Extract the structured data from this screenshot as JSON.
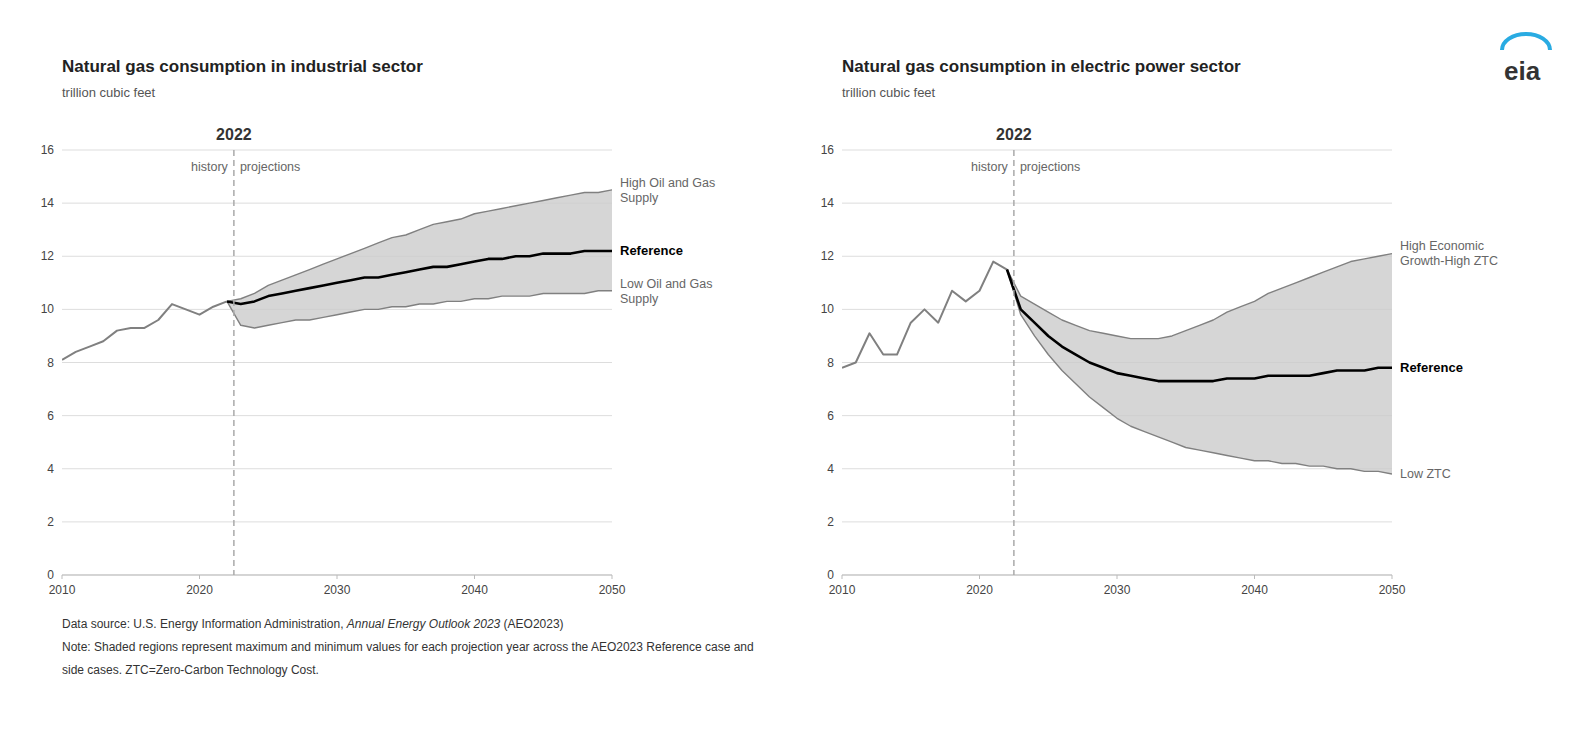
{
  "chart_data": [
    {
      "type": "line",
      "title": "Natural gas consumption in industrial sector",
      "subtitle": "trillion cubic feet",
      "xlim": [
        2010,
        2050
      ],
      "ylim": [
        0,
        16
      ],
      "xticks": [
        2010,
        2020,
        2030,
        2040,
        2050
      ],
      "yticks": [
        0,
        2,
        4,
        6,
        8,
        10,
        12,
        14,
        16
      ],
      "grid": true,
      "band_color": "#cccccc",
      "vline": {
        "x": 2022.5,
        "color": "#aaaaaa",
        "line_style": "dashed",
        "label": "2022",
        "before": "history",
        "after": "projections"
      },
      "series": [
        {
          "name": "High Oil and Gas\nSupply",
          "color": "#808080",
          "x": [
            2022,
            2023,
            2024,
            2025,
            2026,
            2027,
            2028,
            2029,
            2030,
            2031,
            2032,
            2033,
            2034,
            2035,
            2036,
            2037,
            2038,
            2039,
            2040,
            2041,
            2042,
            2043,
            2044,
            2045,
            2046,
            2047,
            2048,
            2049,
            2050
          ],
          "values": [
            10.3,
            10.4,
            10.6,
            10.9,
            11.1,
            11.3,
            11.5,
            11.7,
            11.9,
            12.1,
            12.3,
            12.5,
            12.7,
            12.8,
            13.0,
            13.2,
            13.3,
            13.4,
            13.6,
            13.7,
            13.8,
            13.9,
            14.0,
            14.1,
            14.2,
            14.3,
            14.4,
            14.4,
            14.5
          ]
        },
        {
          "name": "Low Oil and Gas\nSupply",
          "color": "#808080",
          "x": [
            2022,
            2023,
            2024,
            2025,
            2026,
            2027,
            2028,
            2029,
            2030,
            2031,
            2032,
            2033,
            2034,
            2035,
            2036,
            2037,
            2038,
            2039,
            2040,
            2041,
            2042,
            2043,
            2044,
            2045,
            2046,
            2047,
            2048,
            2049,
            2050
          ],
          "values": [
            10.3,
            9.4,
            9.3,
            9.4,
            9.5,
            9.6,
            9.6,
            9.7,
            9.8,
            9.9,
            10.0,
            10.0,
            10.1,
            10.1,
            10.2,
            10.2,
            10.3,
            10.3,
            10.4,
            10.4,
            10.5,
            10.5,
            10.5,
            10.6,
            10.6,
            10.6,
            10.6,
            10.7,
            10.7
          ]
        },
        {
          "color": "#808080",
          "x": [
            2010,
            2011,
            2012,
            2013,
            2014,
            2015,
            2016,
            2017,
            2018,
            2019,
            2020,
            2021,
            2022
          ],
          "values": [
            8.1,
            8.4,
            8.6,
            8.8,
            9.2,
            9.3,
            9.3,
            9.6,
            10.2,
            10.0,
            9.8,
            10.1,
            10.3
          ]
        },
        {
          "name": "Reference",
          "color": "#000000",
          "x": [
            2022,
            2023,
            2024,
            2025,
            2026,
            2027,
            2028,
            2029,
            2030,
            2031,
            2032,
            2033,
            2034,
            2035,
            2036,
            2037,
            2038,
            2039,
            2040,
            2041,
            2042,
            2043,
            2044,
            2045,
            2046,
            2047,
            2048,
            2049,
            2050
          ],
          "values": [
            10.3,
            10.2,
            10.3,
            10.5,
            10.6,
            10.7,
            10.8,
            10.9,
            11.0,
            11.1,
            11.2,
            11.2,
            11.3,
            11.4,
            11.5,
            11.6,
            11.6,
            11.7,
            11.8,
            11.9,
            11.9,
            12.0,
            12.0,
            12.1,
            12.1,
            12.1,
            12.2,
            12.2,
            12.2
          ]
        }
      ]
    },
    {
      "type": "line",
      "title": "Natural gas consumption in electric power sector",
      "subtitle": "trillion cubic feet",
      "xlim": [
        2010,
        2050
      ],
      "ylim": [
        0,
        16
      ],
      "xticks": [
        2010,
        2020,
        2030,
        2040,
        2050
      ],
      "yticks": [
        0,
        2,
        4,
        6,
        8,
        10,
        12,
        14,
        16
      ],
      "grid": true,
      "band_color": "#cccccc",
      "vline": {
        "x": 2022.5,
        "color": "#aaaaaa",
        "line_style": "dashed",
        "label": "2022",
        "before": "history",
        "after": "projections"
      },
      "series": [
        {
          "name": "High Economic\nGrowth-High ZTC",
          "color": "#808080",
          "x": [
            2022,
            2023,
            2024,
            2025,
            2026,
            2027,
            2028,
            2029,
            2030,
            2031,
            2032,
            2033,
            2034,
            2035,
            2036,
            2037,
            2038,
            2039,
            2040,
            2041,
            2042,
            2043,
            2044,
            2045,
            2046,
            2047,
            2048,
            2049,
            2050
          ],
          "values": [
            11.5,
            10.5,
            10.2,
            9.9,
            9.6,
            9.4,
            9.2,
            9.1,
            9.0,
            8.9,
            8.9,
            8.9,
            9.0,
            9.2,
            9.4,
            9.6,
            9.9,
            10.1,
            10.3,
            10.6,
            10.8,
            11.0,
            11.2,
            11.4,
            11.6,
            11.8,
            11.9,
            12.0,
            12.1
          ]
        },
        {
          "name": "Low ZTC",
          "color": "#808080",
          "x": [
            2022,
            2023,
            2024,
            2025,
            2026,
            2027,
            2028,
            2029,
            2030,
            2031,
            2032,
            2033,
            2034,
            2035,
            2036,
            2037,
            2038,
            2039,
            2040,
            2041,
            2042,
            2043,
            2044,
            2045,
            2046,
            2047,
            2048,
            2049,
            2050
          ],
          "values": [
            11.5,
            9.8,
            9.0,
            8.3,
            7.7,
            7.2,
            6.7,
            6.3,
            5.9,
            5.6,
            5.4,
            5.2,
            5.0,
            4.8,
            4.7,
            4.6,
            4.5,
            4.4,
            4.3,
            4.3,
            4.2,
            4.2,
            4.1,
            4.1,
            4.0,
            4.0,
            3.9,
            3.9,
            3.8
          ]
        },
        {
          "color": "#808080",
          "x": [
            2010,
            2011,
            2012,
            2013,
            2014,
            2015,
            2016,
            2017,
            2018,
            2019,
            2020,
            2021,
            2022
          ],
          "values": [
            7.8,
            8.0,
            9.1,
            8.3,
            8.3,
            9.5,
            10.0,
            9.5,
            10.7,
            10.3,
            10.7,
            11.8,
            11.5
          ]
        },
        {
          "name": "Reference",
          "color": "#000000",
          "x": [
            2022,
            2023,
            2024,
            2025,
            2026,
            2027,
            2028,
            2029,
            2030,
            2031,
            2032,
            2033,
            2034,
            2035,
            2036,
            2037,
            2038,
            2039,
            2040,
            2041,
            2042,
            2043,
            2044,
            2045,
            2046,
            2047,
            2048,
            2049,
            2050
          ],
          "values": [
            11.5,
            10.0,
            9.5,
            9.0,
            8.6,
            8.3,
            8.0,
            7.8,
            7.6,
            7.5,
            7.4,
            7.3,
            7.3,
            7.3,
            7.3,
            7.3,
            7.4,
            7.4,
            7.4,
            7.5,
            7.5,
            7.5,
            7.5,
            7.6,
            7.7,
            7.7,
            7.7,
            7.8,
            7.8
          ]
        }
      ]
    }
  ],
  "logo": "eia",
  "footnotes": [
    [
      "Data source: U.S. Energy Information Administration, ",
      "Annual Energy Outlook 2023",
      " (AEO2023)"
    ],
    "Note: Shaded regions represent maximum and minimum values for each projection year across the AEO2023 Reference case and",
    "side cases. ZTC=Zero-Carbon Technology Cost."
  ]
}
